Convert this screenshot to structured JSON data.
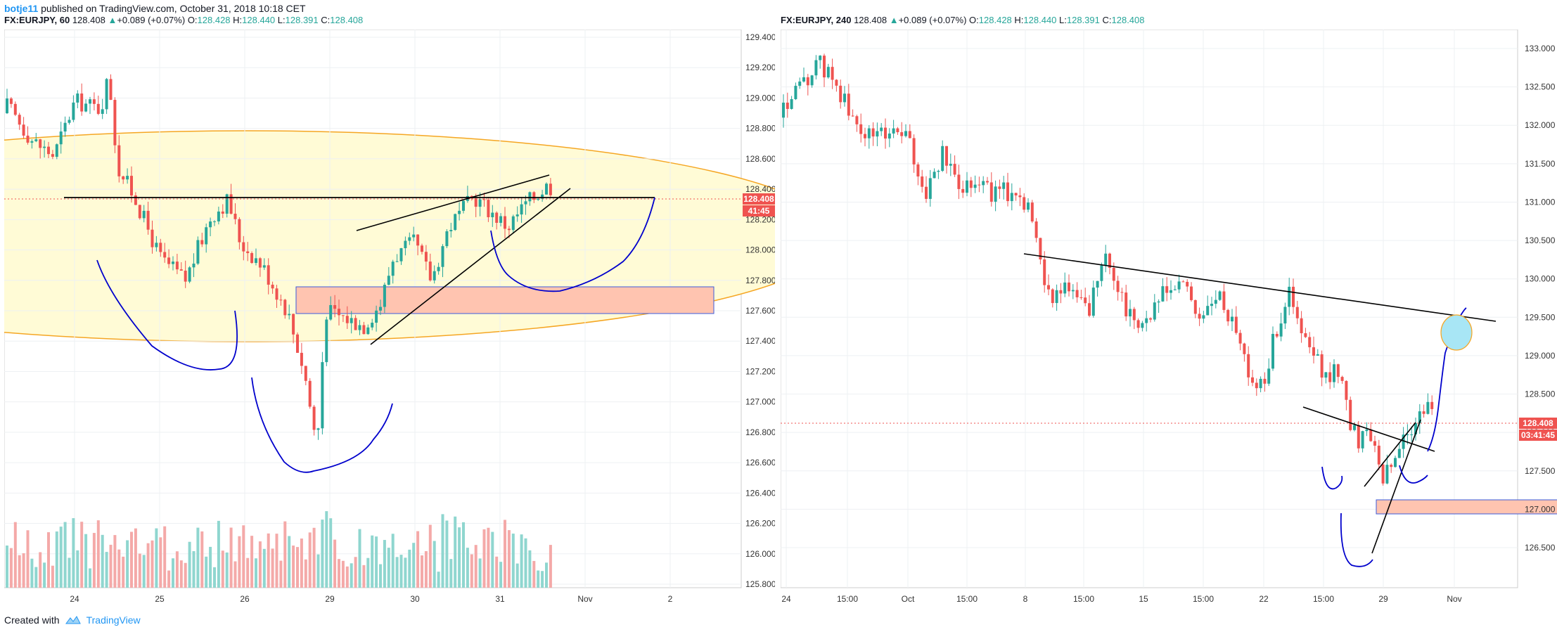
{
  "publish_line": {
    "author": "botje11",
    "text": "published on TradingView.com, October 31, 2018 10:18 CET"
  },
  "left_header": {
    "symbol": "FX:EURJPY, 60",
    "last": "128.408",
    "change": "+0.089 (+0.07%)",
    "o_label": "O:",
    "o": "128.428",
    "h_label": "H:",
    "h": "128.440",
    "l_label": "L:",
    "l": "128.391",
    "c_label": "C:",
    "c": "128.408"
  },
  "right_header": {
    "symbol": "FX:EURJPY, 240",
    "last": "128.408",
    "change": "+0.089 (+0.07%)",
    "o_label": "O:",
    "o": "128.428",
    "h_label": "H:",
    "h": "128.440",
    "l_label": "L:",
    "l": "128.391",
    "c_label": "C:",
    "c": "128.408"
  },
  "footer": {
    "created_with": "Created with",
    "brand": "TradingView"
  },
  "colors": {
    "up": "#26a69a",
    "down": "#ef5350",
    "drawing": "#0000cc",
    "zone": "#ffc4b0",
    "ellipse_fill": "#fffbd6",
    "ellipse_stroke": "#f5a623",
    "price_line": "#ef5350",
    "target_circle": "#a8e6f5"
  },
  "chart_data": [
    {
      "type": "candlestick",
      "pane": "left",
      "timeframe": "60",
      "x_tick_labels": [
        "24",
        "25",
        "26",
        "29",
        "30",
        "31",
        "Nov",
        "2"
      ],
      "y_tick_labels": [
        "129.400",
        "129.200",
        "129.000",
        "128.800",
        "128.600",
        "128.400",
        "128.200",
        "128.000",
        "127.800",
        "127.600",
        "127.400",
        "127.200",
        "127.000",
        "126.800",
        "126.600",
        "126.400",
        "126.200",
        "126.000",
        "125.800"
      ],
      "ylim": [
        125.8,
        129.4
      ],
      "last_price": "128.408",
      "countdown": "41:45",
      "close_path": [
        {
          "day": 0.0,
          "price": 128.95
        },
        {
          "day": 0.3,
          "price": 128.72
        },
        {
          "day": 0.55,
          "price": 128.62
        },
        {
          "day": 0.8,
          "price": 128.98
        },
        {
          "day": 1.1,
          "price": 128.93
        },
        {
          "day": 1.2,
          "price": 129.15
        },
        {
          "day": 1.3,
          "price": 128.55
        },
        {
          "day": 1.5,
          "price": 128.35
        },
        {
          "day": 1.8,
          "price": 127.95
        },
        {
          "day": 2.1,
          "price": 127.8
        },
        {
          "day": 2.4,
          "price": 128.22
        },
        {
          "day": 2.6,
          "price": 128.33
        },
        {
          "day": 2.75,
          "price": 128.05
        },
        {
          "day": 3.0,
          "price": 127.9
        },
        {
          "day": 3.3,
          "price": 127.6
        },
        {
          "day": 3.5,
          "price": 127.2
        },
        {
          "day": 3.65,
          "price": 126.7
        },
        {
          "day": 3.75,
          "price": 127.6
        },
        {
          "day": 4.0,
          "price": 127.55
        },
        {
          "day": 4.2,
          "price": 127.5
        },
        {
          "day": 4.4,
          "price": 127.65
        },
        {
          "day": 4.55,
          "price": 127.95
        },
        {
          "day": 4.8,
          "price": 128.05
        },
        {
          "day": 5.0,
          "price": 127.8
        },
        {
          "day": 5.2,
          "price": 128.15
        },
        {
          "day": 5.5,
          "price": 128.35
        },
        {
          "day": 5.7,
          "price": 128.25
        },
        {
          "day": 5.9,
          "price": 128.15
        },
        {
          "day": 6.1,
          "price": 128.3
        },
        {
          "day": 6.35,
          "price": 128.42
        },
        {
          "day": 6.45,
          "price": 128.41
        }
      ],
      "volume_max": 125
    },
    {
      "type": "candlestick",
      "pane": "right",
      "timeframe": "240",
      "x_tick_labels": [
        "24",
        "15:00",
        "Oct",
        "15:00",
        "8",
        "15:00",
        "15",
        "15:00",
        "22",
        "15:00",
        "29",
        "Nov"
      ],
      "y_tick_labels": [
        "133.000",
        "132.500",
        "132.000",
        "131.500",
        "131.000",
        "130.500",
        "130.000",
        "129.500",
        "129.000",
        "128.500",
        "128.000",
        "127.500",
        "127.000",
        "126.500"
      ],
      "ylim": [
        126.5,
        133.0
      ],
      "last_price": "128.408",
      "countdown": "03:41:45",
      "close_path": [
        {
          "t": 0.0,
          "price": 132.2
        },
        {
          "t": 0.6,
          "price": 132.55
        },
        {
          "t": 1.0,
          "price": 132.8
        },
        {
          "t": 1.5,
          "price": 132.55
        },
        {
          "t": 2.0,
          "price": 132.0
        },
        {
          "t": 2.5,
          "price": 131.85
        },
        {
          "t": 3.0,
          "price": 131.95
        },
        {
          "t": 3.5,
          "price": 131.85
        },
        {
          "t": 4.0,
          "price": 131.1
        },
        {
          "t": 4.5,
          "price": 131.6
        },
        {
          "t": 5.0,
          "price": 131.25
        },
        {
          "t": 5.5,
          "price": 131.3
        },
        {
          "t": 6.0,
          "price": 131.1
        },
        {
          "t": 6.5,
          "price": 131.15
        },
        {
          "t": 7.0,
          "price": 130.95
        },
        {
          "t": 7.2,
          "price": 130.3
        },
        {
          "t": 7.6,
          "price": 129.8
        },
        {
          "t": 8.2,
          "price": 129.85
        },
        {
          "t": 8.6,
          "price": 129.55
        },
        {
          "t": 9.2,
          "price": 130.3
        },
        {
          "t": 9.8,
          "price": 129.5
        },
        {
          "t": 10.3,
          "price": 129.45
        },
        {
          "t": 10.8,
          "price": 129.8
        },
        {
          "t": 11.3,
          "price": 129.95
        },
        {
          "t": 11.8,
          "price": 129.5
        },
        {
          "t": 12.3,
          "price": 129.75
        },
        {
          "t": 12.8,
          "price": 129.45
        },
        {
          "t": 13.3,
          "price": 128.6
        },
        {
          "t": 13.6,
          "price": 128.65
        },
        {
          "t": 13.9,
          "price": 129.2
        },
        {
          "t": 14.3,
          "price": 129.85
        },
        {
          "t": 14.7,
          "price": 129.25
        },
        {
          "t": 15.1,
          "price": 128.95
        },
        {
          "t": 15.4,
          "price": 128.65
        },
        {
          "t": 15.8,
          "price": 128.9
        },
        {
          "t": 16.0,
          "price": 128.2
        },
        {
          "t": 16.3,
          "price": 127.9
        },
        {
          "t": 16.5,
          "price": 128.1
        },
        {
          "t": 16.8,
          "price": 127.85
        },
        {
          "t": 17.0,
          "price": 127.4
        },
        {
          "t": 17.3,
          "price": 127.6
        },
        {
          "t": 17.6,
          "price": 128.0
        },
        {
          "t": 17.9,
          "price": 128.1
        },
        {
          "t": 18.2,
          "price": 128.3
        },
        {
          "t": 18.5,
          "price": 128.41
        }
      ]
    }
  ]
}
